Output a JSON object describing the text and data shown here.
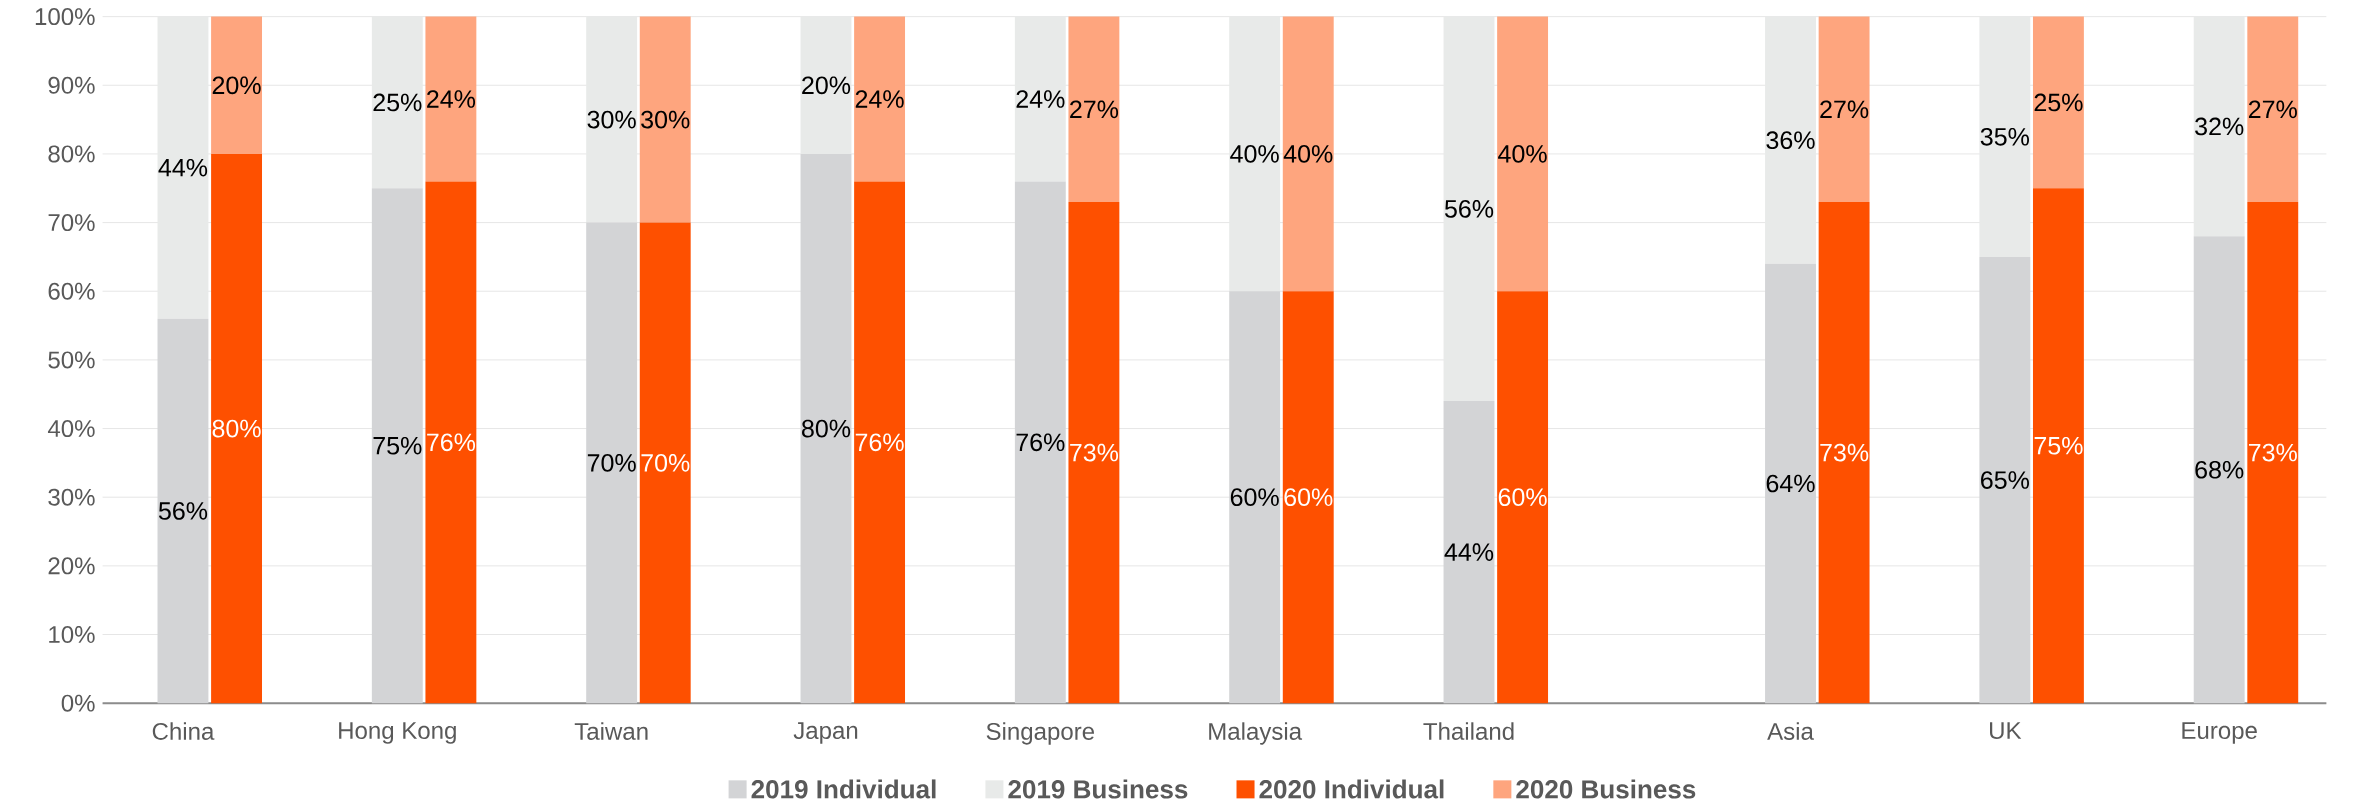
{
  "chart_data": {
    "type": "bar",
    "stacked": true,
    "grid": "y",
    "legend": "bottom",
    "categories": [
      "China",
      null,
      null,
      null,
      "Hong Kong",
      null,
      null,
      null,
      "Taiwan",
      null,
      null,
      null,
      "Japan",
      null,
      null,
      null,
      "Singapore",
      null,
      null,
      null,
      "Malaysia",
      null,
      null,
      null,
      "Thailand",
      null,
      null,
      null,
      null,
      null,
      "Asia",
      null,
      null,
      null,
      "UK",
      null,
      null,
      null,
      "Europe",
      null
    ],
    "series": [
      {
        "name": "2019 Individual",
        "color": "#d3d4d6",
        "values": [
          56,
          null,
          null,
          null,
          75,
          null,
          null,
          null,
          70,
          null,
          null,
          null,
          80,
          null,
          null,
          null,
          76,
          null,
          null,
          null,
          60,
          null,
          null,
          null,
          44,
          null,
          null,
          null,
          null,
          null,
          64,
          null,
          null,
          null,
          65,
          null,
          null,
          null,
          68,
          null
        ],
        "value_labels": [
          "56%",
          null,
          null,
          null,
          "75%",
          null,
          null,
          null,
          "70%",
          null,
          null,
          null,
          "80%",
          null,
          null,
          null,
          "76%",
          null,
          null,
          null,
          "60%",
          null,
          null,
          null,
          "44%",
          null,
          null,
          null,
          null,
          null,
          "64%",
          null,
          null,
          null,
          "65%",
          null,
          null,
          null,
          "68%",
          null
        ]
      },
      {
        "name": "2019 Business",
        "color": "#e8eae9",
        "values": [
          44,
          null,
          null,
          null,
          25,
          null,
          null,
          null,
          30,
          null,
          null,
          null,
          20,
          null,
          null,
          null,
          24,
          null,
          null,
          null,
          40,
          null,
          null,
          null,
          56,
          null,
          null,
          null,
          null,
          null,
          36,
          null,
          null,
          null,
          35,
          null,
          null,
          null,
          32,
          null
        ],
        "value_labels": [
          "44%",
          null,
          null,
          null,
          "25%",
          null,
          null,
          null,
          "30%",
          null,
          null,
          null,
          "20%",
          null,
          null,
          null,
          "24%",
          null,
          null,
          null,
          "40%",
          null,
          null,
          null,
          "56%",
          null,
          null,
          null,
          null,
          null,
          "36%",
          null,
          null,
          null,
          "35%",
          null,
          null,
          null,
          "32%",
          null
        ]
      },
      {
        "name": "2020 Individual",
        "color": "#fe5000",
        "values": [
          null,
          80,
          null,
          null,
          null,
          76,
          null,
          null,
          null,
          70,
          null,
          null,
          null,
          76,
          null,
          null,
          null,
          73,
          null,
          null,
          null,
          60,
          null,
          null,
          null,
          60,
          null,
          null,
          null,
          null,
          null,
          73,
          null,
          null,
          null,
          75,
          null,
          null,
          null,
          73
        ],
        "value_labels": [
          null,
          "80%",
          null,
          null,
          null,
          "76%",
          null,
          null,
          null,
          "70%",
          null,
          null,
          null,
          "76%",
          null,
          null,
          null,
          "73%",
          null,
          null,
          null,
          "60%",
          null,
          null,
          null,
          "60%",
          null,
          null,
          null,
          null,
          null,
          "73%",
          null,
          null,
          null,
          "75%",
          null,
          null,
          null,
          "73%"
        ]
      },
      {
        "name": "2020 Business",
        "color": "#fea57e",
        "values": [
          null,
          20,
          null,
          null,
          null,
          24,
          null,
          null,
          null,
          30,
          null,
          null,
          null,
          24,
          null,
          null,
          null,
          27,
          null,
          null,
          null,
          40,
          null,
          null,
          null,
          40,
          null,
          null,
          null,
          null,
          null,
          27,
          null,
          null,
          null,
          25,
          null,
          null,
          null,
          27
        ],
        "value_labels": [
          null,
          "20%",
          null,
          null,
          null,
          "24%",
          null,
          null,
          null,
          "30%",
          null,
          null,
          null,
          "24%",
          null,
          null,
          null,
          "27%",
          null,
          null,
          null,
          "40%",
          null,
          null,
          null,
          "40%",
          null,
          null,
          null,
          null,
          null,
          "27%",
          null,
          null,
          null,
          "25%",
          null,
          null,
          null,
          "27%"
        ]
      }
    ],
    "ylim": [
      0,
      100
    ],
    "yticks": [
      {
        "value": 0,
        "label": "0%"
      },
      {
        "value": 10,
        "label": "10%"
      },
      {
        "value": 20,
        "label": "20%"
      },
      {
        "value": 30,
        "label": "30%"
      },
      {
        "value": 40,
        "label": "40%"
      },
      {
        "value": 50,
        "label": "50%"
      },
      {
        "value": 60,
        "label": "60%"
      },
      {
        "value": 70,
        "label": "70%"
      },
      {
        "value": 80,
        "label": "80%"
      },
      {
        "value": 90,
        "label": "90%"
      },
      {
        "value": 100,
        "label": "100%"
      }
    ]
  }
}
